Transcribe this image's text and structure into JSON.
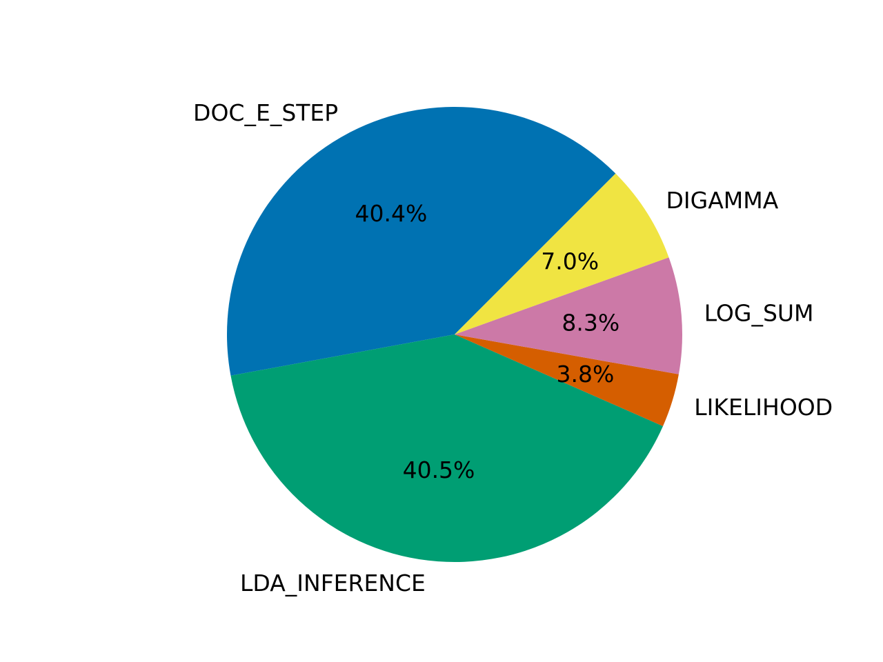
{
  "chart_data": {
    "type": "pie",
    "title": "",
    "slices": [
      {
        "label": "DOC_E_STEP",
        "value": 40.4,
        "pct_label": "40.4%",
        "color": "#0072b2"
      },
      {
        "label": "LDA_INFERENCE",
        "value": 40.5,
        "pct_label": "40.5%",
        "color": "#009e73"
      },
      {
        "label": "LIKELIHOOD",
        "value": 3.8,
        "pct_label": "3.8%",
        "color": "#d55e00"
      },
      {
        "label": "LOG_SUM",
        "value": 8.3,
        "pct_label": "8.3%",
        "color": "#cc79a7"
      },
      {
        "label": "DIGAMMA",
        "value": 7.0,
        "pct_label": "7.0%",
        "color": "#f0e442"
      }
    ],
    "start_angle": 45,
    "direction": "counterclockwise",
    "legend": "none"
  }
}
